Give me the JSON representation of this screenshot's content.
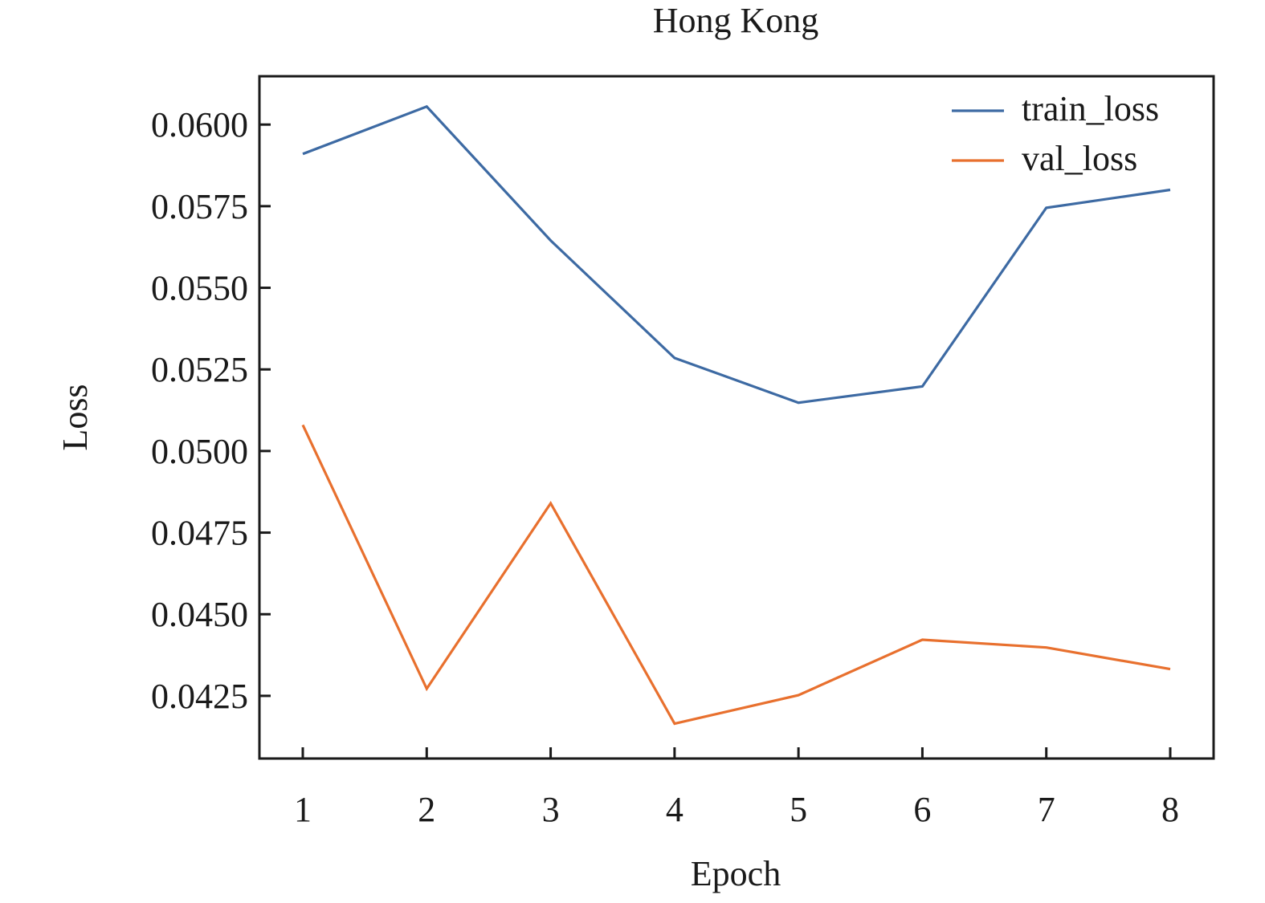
{
  "chart_data": {
    "type": "line",
    "title": "Hong Kong",
    "xlabel": "Epoch",
    "ylabel": "Loss",
    "x": [
      1,
      2,
      3,
      4,
      5,
      6,
      7,
      8
    ],
    "xticks": [
      "1",
      "2",
      "3",
      "4",
      "5",
      "6",
      "7",
      "8"
    ],
    "xlim": [
      0.65,
      8.35
    ],
    "yticks": [
      "0.0425",
      "0.0450",
      "0.0475",
      "0.0500",
      "0.0525",
      "0.0550",
      "0.0575",
      "0.0600"
    ],
    "ytick_values": [
      0.0425,
      0.045,
      0.0475,
      0.05,
      0.0525,
      0.055,
      0.0575,
      0.06
    ],
    "ylim": [
      0.04058,
      0.06148
    ],
    "grid": false,
    "legend_position": "top-right",
    "series": [
      {
        "name": "train_loss",
        "color": "#3d6aa3",
        "values": [
          0.0591,
          0.06055,
          0.05645,
          0.05285,
          0.05148,
          0.05198,
          0.05745,
          0.058
        ]
      },
      {
        "name": "val_loss",
        "color": "#e8702e",
        "values": [
          0.0508,
          0.04272,
          0.0484,
          0.04165,
          0.04252,
          0.04422,
          0.04398,
          0.04332
        ]
      }
    ]
  }
}
